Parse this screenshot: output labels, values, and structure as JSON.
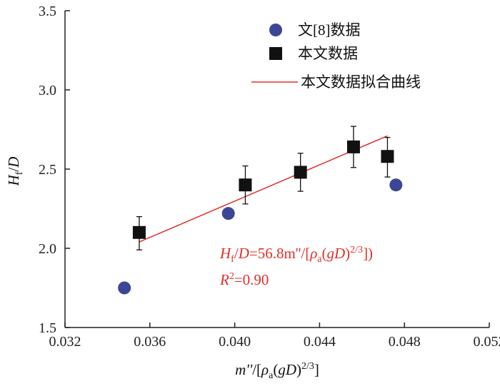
{
  "chart_data": {
    "type": "scatter",
    "title": "",
    "xlabel": "m''/[ρa(gD)2/3]",
    "ylabel": "Hf/D",
    "xlim": [
      0.032,
      0.052
    ],
    "ylim": [
      1.5,
      3.5
    ],
    "xticks": [
      "0.032",
      "0.036",
      "0.040",
      "0.044",
      "0.048",
      "0.052"
    ],
    "yticks": [
      "1.5",
      "2.0",
      "2.5",
      "3.0",
      "3.5"
    ],
    "legend_position": "top-right",
    "series": [
      {
        "name": "文[8]数据",
        "marker": "circle",
        "color": "#3d4596",
        "points": [
          [
            0.0348,
            1.75
          ],
          [
            0.0397,
            2.22
          ],
          [
            0.0476,
            2.4
          ]
        ]
      },
      {
        "name": "本文数据",
        "marker": "square",
        "color": "#111111",
        "points": [
          [
            0.0355,
            2.1
          ],
          [
            0.0405,
            2.4
          ],
          [
            0.0431,
            2.48
          ],
          [
            0.0456,
            2.64
          ],
          [
            0.0472,
            2.58
          ]
        ],
        "error": [
          [
            1.99,
            2.2
          ],
          [
            2.28,
            2.52
          ],
          [
            2.36,
            2.6
          ],
          [
            2.51,
            2.77
          ],
          [
            2.45,
            2.7
          ]
        ]
      },
      {
        "name": "本文数据拟合曲线",
        "type": "line",
        "color": "#e0302a",
        "points": [
          [
            0.0355,
            2.04
          ],
          [
            0.0472,
            2.71
          ]
        ]
      }
    ],
    "annotations": [
      "Hf/D=56.8m''/[ρa(gD)2/3])",
      "R2=0.90"
    ]
  }
}
